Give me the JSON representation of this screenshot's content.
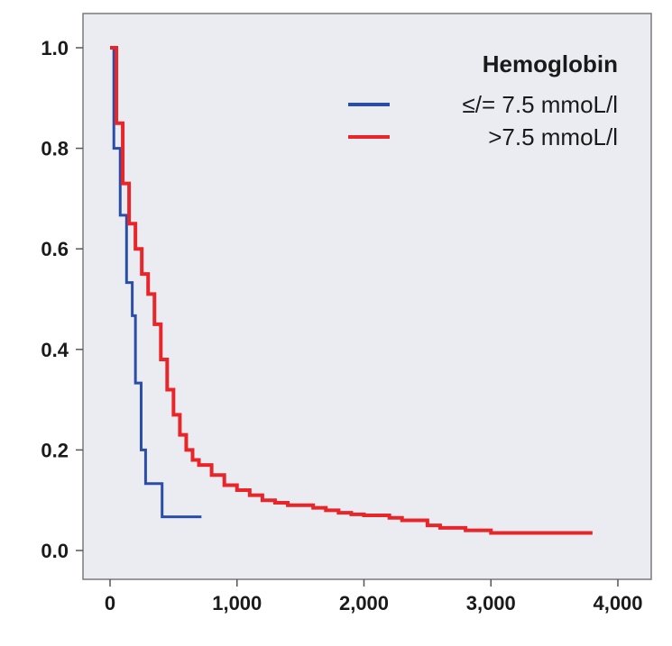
{
  "chart_data": {
    "type": "line",
    "step": true,
    "title": "",
    "xlabel": "",
    "ylabel": "",
    "xlim": [
      0,
      4000
    ],
    "ylim": [
      0.0,
      1.0
    ],
    "x_ticks": [
      0,
      1000,
      2000,
      3000,
      4000
    ],
    "x_tick_labels": [
      "0",
      "1,000",
      "2,000",
      "3,000",
      "4,000"
    ],
    "y_ticks": [
      0.0,
      0.2,
      0.4,
      0.6,
      0.8,
      1.0
    ],
    "y_tick_labels": [
      "0.0",
      "0.2",
      "0.4",
      "0.6",
      "0.8",
      "1.0"
    ],
    "grid": false,
    "background_color": "#eaecf2",
    "legend": {
      "placement": "top-right",
      "title": "Hemoglobin",
      "entries": [
        "≤/= 7.5 mmoL/l",
        ">7.5 mmoL/l"
      ]
    },
    "series": [
      {
        "name": "≤/= 7.5 mmoL/l",
        "color": "#2a4da8",
        "x": [
          0,
          30,
          30,
          80,
          80,
          130,
          130,
          175,
          175,
          200,
          200,
          245,
          245,
          280,
          280,
          410,
          410,
          720
        ],
        "y": [
          1.0,
          1.0,
          0.8,
          0.8,
          0.667,
          0.667,
          0.533,
          0.533,
          0.467,
          0.467,
          0.333,
          0.333,
          0.2,
          0.2,
          0.133,
          0.133,
          0.067,
          0.067
        ]
      },
      {
        "name": ">7.5 mmoL/l",
        "color": "#e8262a",
        "x": [
          0,
          50,
          100,
          150,
          200,
          250,
          300,
          350,
          400,
          450,
          500,
          550,
          600,
          650,
          700,
          800,
          900,
          1000,
          1100,
          1200,
          1300,
          1400,
          1500,
          1600,
          1700,
          1800,
          1900,
          2000,
          2200,
          2300,
          2400,
          2500,
          2600,
          2700,
          2800,
          2900,
          3000,
          3500,
          3800
        ],
        "y": [
          1.0,
          0.85,
          0.73,
          0.65,
          0.6,
          0.55,
          0.51,
          0.45,
          0.38,
          0.32,
          0.27,
          0.23,
          0.2,
          0.18,
          0.17,
          0.15,
          0.13,
          0.12,
          0.11,
          0.1,
          0.095,
          0.09,
          0.09,
          0.085,
          0.08,
          0.075,
          0.072,
          0.07,
          0.065,
          0.06,
          0.06,
          0.05,
          0.045,
          0.045,
          0.04,
          0.04,
          0.035,
          0.035,
          0.035
        ]
      }
    ]
  }
}
